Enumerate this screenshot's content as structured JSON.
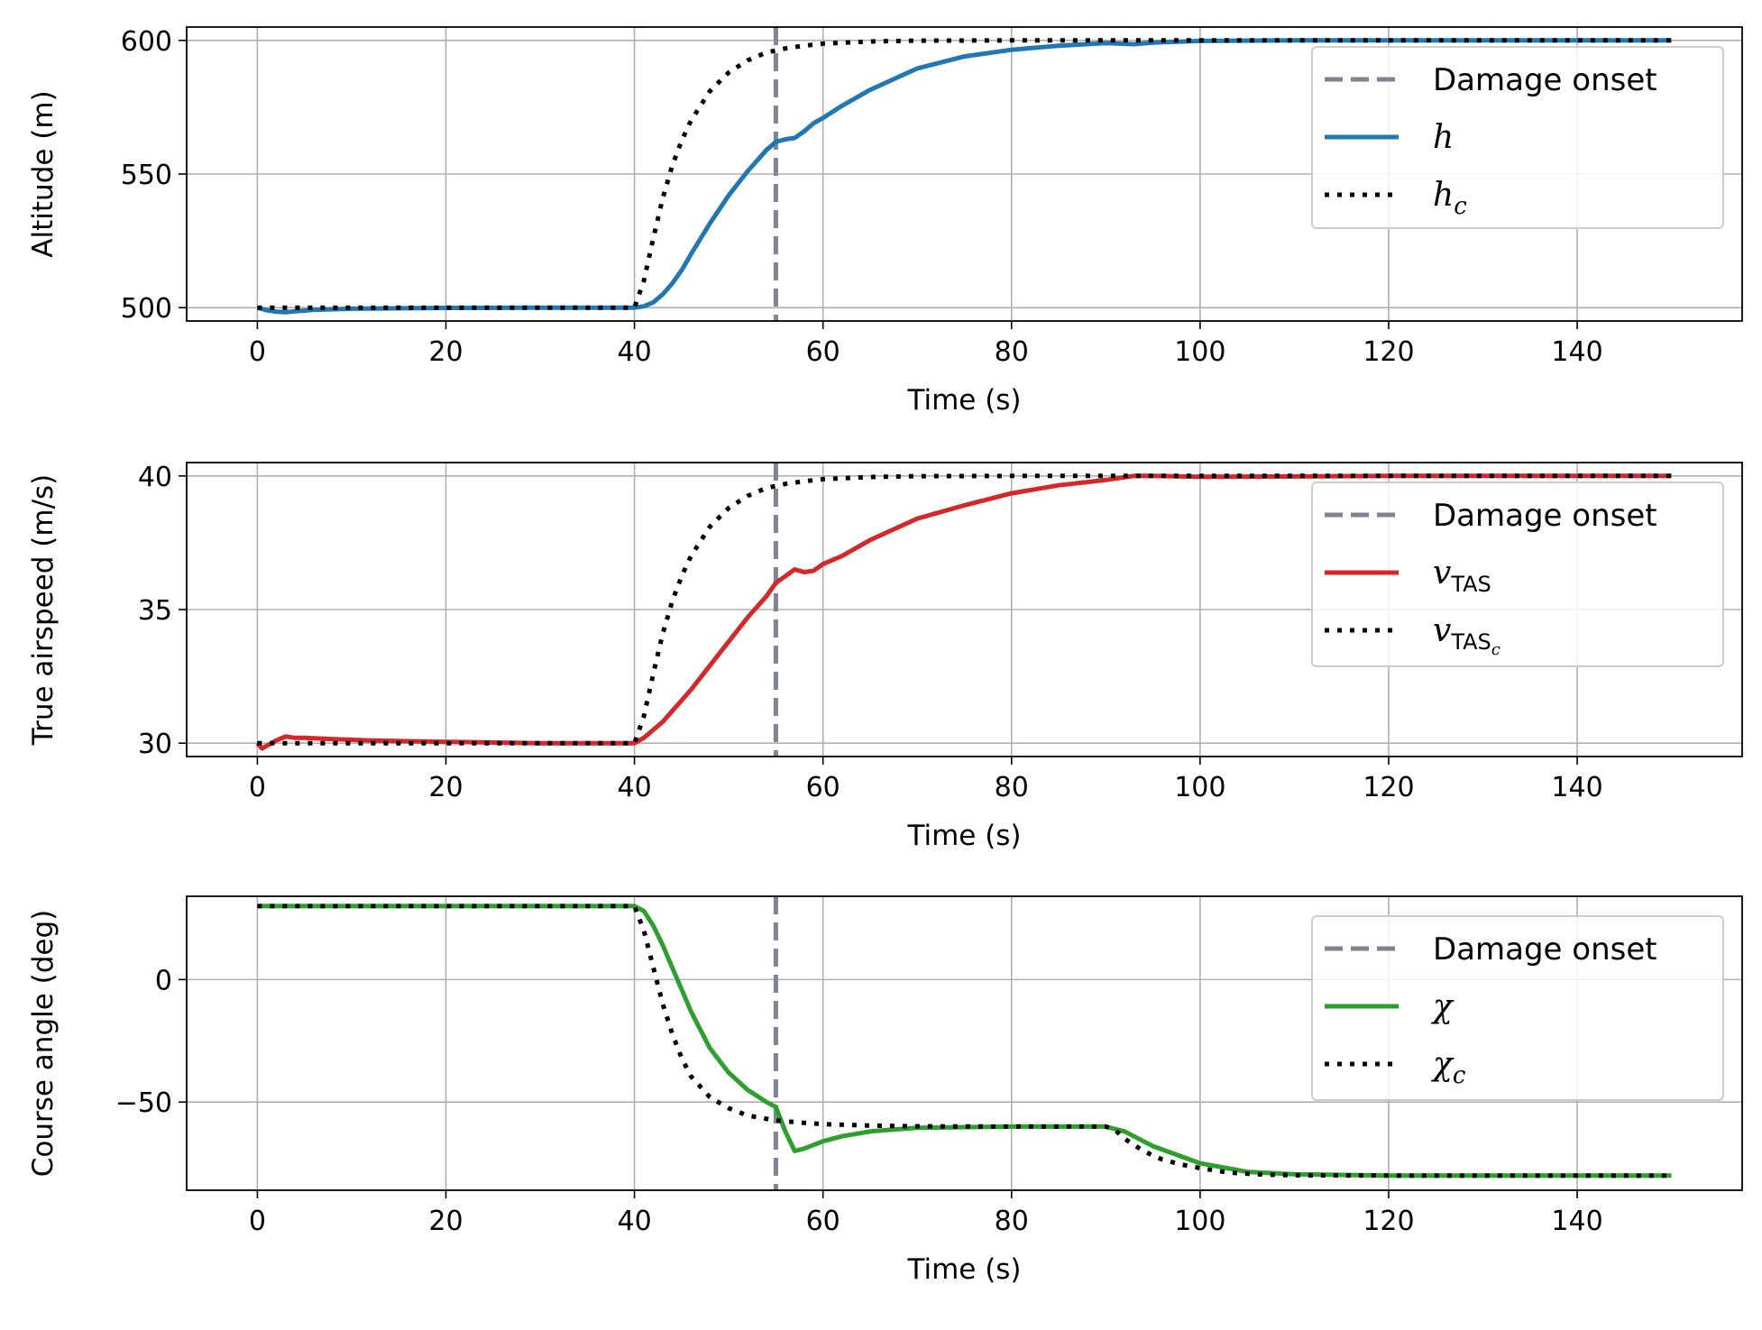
{
  "chart_data": [
    {
      "type": "line",
      "xlabel": "Time (s)",
      "ylabel": "Altitude (m)",
      "xlim": [
        -7.5,
        157.5
      ],
      "ylim": [
        495,
        605
      ],
      "xticks": [
        0,
        20,
        40,
        60,
        80,
        100,
        120,
        140
      ],
      "xtick_labels": [
        "0",
        "20",
        "40",
        "60",
        "80",
        "100",
        "120",
        "140"
      ],
      "yticks": [
        500,
        550,
        600
      ],
      "ytick_labels": [
        "500",
        "550",
        "600"
      ],
      "grid": true,
      "legend_position": "top-right",
      "damage_onset": 55,
      "series": [
        {
          "name": "Damage onset",
          "legend_main": "Damage onset",
          "legend_sub": "",
          "legend_sub2": "",
          "style": "dashed",
          "color": "#7f8494"
        },
        {
          "name": "h",
          "legend_main": "h",
          "legend_sub": "",
          "legend_sub2": "",
          "style": "solid",
          "color": "#1f77b4",
          "x": [
            0,
            1,
            2,
            3,
            4,
            6,
            10,
            20,
            30,
            38,
            40,
            41,
            42,
            43,
            44,
            45,
            46,
            48,
            50,
            52,
            54,
            55,
            56,
            57,
            58,
            59,
            60,
            62,
            65,
            70,
            75,
            80,
            85,
            90,
            93,
            95,
            100,
            110,
            120,
            130,
            140,
            150
          ],
          "y": [
            500,
            499.0,
            498.5,
            498.3,
            498.6,
            499.2,
            499.6,
            499.9,
            500,
            500,
            500,
            500.5,
            502,
            505,
            509,
            514,
            520,
            531.5,
            542,
            551,
            559,
            562,
            563,
            563.5,
            566,
            569,
            571,
            575.5,
            581.5,
            589.5,
            594,
            596.5,
            598,
            599,
            598.6,
            599.2,
            599.8,
            600,
            600,
            600,
            600,
            600
          ]
        },
        {
          "name": "h_c",
          "legend_main": "h",
          "legend_sub": "c",
          "legend_sub2": "",
          "style": "dotted",
          "color": "#000000",
          "x": [
            0,
            10,
            20,
            30,
            40,
            41,
            42,
            43,
            44,
            45,
            46,
            48,
            50,
            52,
            54,
            56,
            58,
            60,
            65,
            70,
            80,
            100,
            150
          ],
          "y": [
            500,
            500,
            500,
            500,
            500,
            510,
            526,
            541,
            553,
            562.5,
            570,
            581,
            588,
            592.5,
            595.5,
            597,
            598,
            598.8,
            599.6,
            599.9,
            600,
            600,
            600
          ]
        }
      ]
    },
    {
      "type": "line",
      "xlabel": "Time (s)",
      "ylabel": "True airspeed (m/s)",
      "xlim": [
        -7.5,
        157.5
      ],
      "ylim": [
        29.5,
        40.5
      ],
      "xticks": [
        0,
        20,
        40,
        60,
        80,
        100,
        120,
        140
      ],
      "xtick_labels": [
        "0",
        "20",
        "40",
        "60",
        "80",
        "100",
        "120",
        "140"
      ],
      "yticks": [
        30,
        35,
        40
      ],
      "ytick_labels": [
        "30",
        "35",
        "40"
      ],
      "grid": true,
      "legend_position": "top-right",
      "damage_onset": 55,
      "series": [
        {
          "name": "Damage onset",
          "legend_main": "Damage onset",
          "legend_sub": "",
          "legend_sub2": "",
          "style": "dashed",
          "color": "#7f8494"
        },
        {
          "name": "v_TAS",
          "legend_main": "v",
          "legend_sub": "TAS",
          "legend_sub2": "",
          "style": "solid",
          "color": "#d62728",
          "x": [
            0,
            0.5,
            1,
            2,
            3,
            4,
            5,
            8,
            12,
            20,
            30,
            38,
            40,
            41,
            42,
            43,
            44,
            45,
            46,
            48,
            50,
            52,
            54,
            55,
            56,
            57,
            58,
            59,
            60,
            62,
            65,
            70,
            75,
            80,
            85,
            90,
            93,
            95,
            100,
            110,
            120,
            150
          ],
          "y": [
            30,
            29.8,
            29.9,
            30.1,
            30.25,
            30.2,
            30.2,
            30.15,
            30.1,
            30.05,
            30.0,
            30.0,
            30.0,
            30.2,
            30.5,
            30.8,
            31.2,
            31.6,
            32.0,
            32.9,
            33.8,
            34.7,
            35.5,
            36.0,
            36.25,
            36.5,
            36.4,
            36.45,
            36.7,
            37.0,
            37.6,
            38.4,
            38.9,
            39.35,
            39.65,
            39.85,
            40.0,
            40.0,
            39.97,
            39.98,
            40.0,
            40.0
          ]
        },
        {
          "name": "v_TAS_c",
          "legend_main": "v",
          "legend_sub": "TAS",
          "legend_sub2": "c",
          "style": "dotted",
          "color": "#000000",
          "x": [
            0,
            10,
            20,
            30,
            40,
            41,
            42,
            43,
            44,
            45,
            46,
            48,
            50,
            52,
            54,
            56,
            58,
            60,
            65,
            70,
            80,
            100,
            150
          ],
          "y": [
            30,
            30,
            30,
            30,
            30,
            31,
            32.6,
            34.1,
            35.3,
            36.25,
            37.0,
            38.1,
            38.8,
            39.25,
            39.55,
            39.7,
            39.8,
            39.88,
            39.96,
            39.99,
            40,
            40,
            40
          ]
        }
      ]
    },
    {
      "type": "line",
      "xlabel": "Time (s)",
      "ylabel": "Course angle (deg)",
      "xlim": [
        -7.5,
        157.5
      ],
      "ylim": [
        -86,
        34
      ],
      "xticks": [
        0,
        20,
        40,
        60,
        80,
        100,
        120,
        140
      ],
      "xtick_labels": [
        "0",
        "20",
        "40",
        "60",
        "80",
        "100",
        "120",
        "140"
      ],
      "yticks": [
        -50,
        0
      ],
      "ytick_labels": [
        "−50",
        "0"
      ],
      "grid": true,
      "legend_position": "top-right",
      "damage_onset": 55,
      "series": [
        {
          "name": "Damage onset",
          "legend_main": "Damage onset",
          "legend_sub": "",
          "legend_sub2": "",
          "style": "dashed",
          "color": "#7f8494"
        },
        {
          "name": "chi",
          "legend_main": "χ",
          "legend_sub": "",
          "legend_sub2": "",
          "style": "solid",
          "color": "#2ca02c",
          "x": [
            0,
            10,
            20,
            30,
            40,
            41,
            42,
            43,
            44,
            45,
            46,
            48,
            50,
            52,
            54,
            55,
            56,
            57,
            58,
            60,
            62,
            65,
            70,
            80,
            88,
            90,
            92,
            95,
            100,
            105,
            110,
            120,
            150
          ],
          "y": [
            30,
            30,
            30,
            30,
            30,
            28,
            22,
            14,
            5,
            -4,
            -13,
            -28,
            -38,
            -45,
            -50,
            -52,
            -62,
            -70,
            -69,
            -66,
            -64,
            -62,
            -60.5,
            -60,
            -60,
            -60,
            -62,
            -68,
            -75,
            -78.5,
            -79.5,
            -80,
            -80
          ]
        },
        {
          "name": "chi_c",
          "legend_main": "χ",
          "legend_sub": "c",
          "legend_sub2": "",
          "style": "dotted",
          "color": "#000000",
          "x": [
            0,
            10,
            20,
            30,
            40,
            41,
            42,
            43,
            44,
            45,
            46,
            48,
            50,
            52,
            55,
            58,
            60,
            65,
            70,
            80,
            90,
            91,
            92,
            94,
            96,
            98,
            100,
            103,
            106,
            110,
            120,
            150
          ],
          "y": [
            30,
            30,
            30,
            30,
            30,
            20,
            5,
            -10,
            -22,
            -32,
            -39.5,
            -48,
            -52.5,
            -55.5,
            -57.5,
            -58.5,
            -59,
            -59.6,
            -59.9,
            -60,
            -60,
            -61.5,
            -65,
            -70,
            -73.5,
            -75.5,
            -77,
            -78.8,
            -79.5,
            -79.9,
            -80,
            -80
          ]
        }
      ]
    }
  ]
}
